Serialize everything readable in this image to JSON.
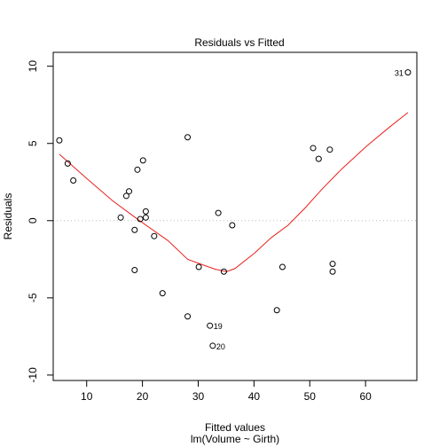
{
  "chart_data": {
    "type": "scatter",
    "title": "Residuals vs Fitted",
    "xlabel": "Fitted values",
    "xlabel_sub": "lm(Volume ~ Girth)",
    "ylabel": "Residuals",
    "xlim": [
      5,
      67.5
    ],
    "ylim": [
      -10,
      10
    ],
    "x_ticks": [
      10,
      20,
      30,
      40,
      50,
      60
    ],
    "y_ticks": [
      -10,
      -5,
      0,
      5,
      10
    ],
    "grid": false,
    "reference_line": 0,
    "points": [
      {
        "x": 5.1,
        "y": 5.2
      },
      {
        "x": 6.6,
        "y": 3.7
      },
      {
        "x": 7.6,
        "y": 2.6
      },
      {
        "x": 16.1,
        "y": 0.2
      },
      {
        "x": 17.1,
        "y": 1.6
      },
      {
        "x": 17.6,
        "y": 1.9
      },
      {
        "x": 18.6,
        "y": -0.6
      },
      {
        "x": 18.6,
        "y": -3.2
      },
      {
        "x": 19.1,
        "y": 3.3
      },
      {
        "x": 19.6,
        "y": 0.1
      },
      {
        "x": 20.1,
        "y": 3.9
      },
      {
        "x": 20.6,
        "y": 0.6
      },
      {
        "x": 20.6,
        "y": 0.2
      },
      {
        "x": 22.1,
        "y": -1.0
      },
      {
        "x": 23.6,
        "y": -4.7
      },
      {
        "x": 28.1,
        "y": 5.4
      },
      {
        "x": 28.1,
        "y": -6.2
      },
      {
        "x": 30.1,
        "y": -3.0
      },
      {
        "x": 32.1,
        "y": -6.8,
        "label": "19"
      },
      {
        "x": 32.6,
        "y": -8.1,
        "label": "20"
      },
      {
        "x": 33.6,
        "y": 0.5
      },
      {
        "x": 34.6,
        "y": -3.3
      },
      {
        "x": 36.1,
        "y": -0.3
      },
      {
        "x": 44.1,
        "y": -5.8
      },
      {
        "x": 45.1,
        "y": -3.0
      },
      {
        "x": 50.6,
        "y": 4.7
      },
      {
        "x": 51.6,
        "y": 4.0
      },
      {
        "x": 53.6,
        "y": 4.6
      },
      {
        "x": 54.1,
        "y": -2.8
      },
      {
        "x": 54.1,
        "y": -3.3
      },
      {
        "x": 67.6,
        "y": 9.6,
        "label": "31"
      }
    ],
    "smooth_line": {
      "color": "#e8211d",
      "x": [
        5.1,
        10.1,
        14.6,
        19.1,
        24.6,
        28.1,
        31.1,
        33.1,
        35.1,
        36.6,
        40.1,
        43.1,
        46.1,
        49.1,
        52.1,
        55.6,
        60.1,
        64.1,
        67.6
      ],
      "y": [
        4.3,
        2.7,
        1.3,
        0.1,
        -1.3,
        -2.5,
        -2.9,
        -3.15,
        -3.3,
        -3.1,
        -2.1,
        -1.1,
        -0.3,
        0.8,
        2.0,
        3.3,
        4.8,
        6.0,
        7.0
      ]
    }
  }
}
